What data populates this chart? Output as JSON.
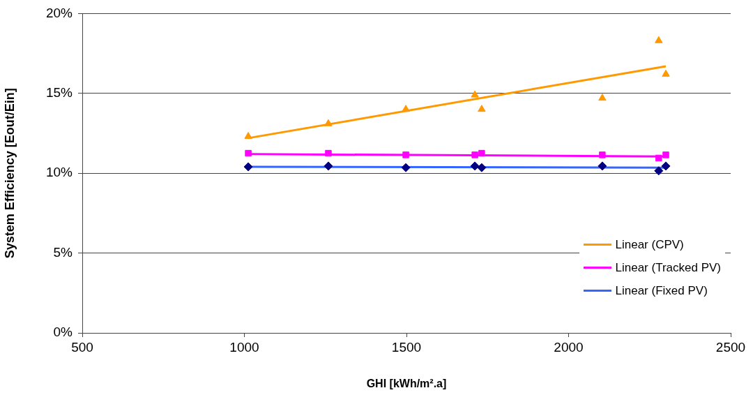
{
  "chart_data": {
    "type": "scatter",
    "xlabel": "GHI [kWh/m².a]",
    "ylabel": "System Efficiency [Eout/Ein]",
    "xlim": [
      500,
      2500
    ],
    "xticks": [
      500,
      1000,
      1500,
      2000,
      2500
    ],
    "ylim": [
      0,
      20
    ],
    "yticks": [
      {
        "value": 0,
        "label": "0%"
      },
      {
        "value": 5,
        "label": "5%"
      },
      {
        "value": 10,
        "label": "10%"
      },
      {
        "value": 15,
        "label": "15%"
      },
      {
        "value": 20,
        "label": "20%"
      }
    ],
    "grid": "y",
    "legend": "right",
    "series": [
      {
        "marker": "triangle",
        "color": "#ff9900",
        "x": [
          1012,
          1259,
          1498,
          1711,
          1732,
          2104,
          2278,
          2300
        ],
        "values": [
          12.3,
          13.1,
          14.0,
          14.9,
          14.0,
          14.7,
          18.3,
          16.2
        ]
      },
      {
        "marker": "square",
        "color": "#ff00ff",
        "x": [
          1012,
          1259,
          1498,
          1711,
          1732,
          2104,
          2278,
          2300
        ],
        "values": [
          11.25,
          11.25,
          11.15,
          11.15,
          11.25,
          11.15,
          10.95,
          11.15
        ]
      },
      {
        "marker": "diamond",
        "color": "#000080",
        "x": [
          1012,
          1259,
          1498,
          1711,
          1732,
          2104,
          2278,
          2300
        ],
        "values": [
          10.4,
          10.45,
          10.35,
          10.45,
          10.35,
          10.45,
          10.15,
          10.45
        ]
      },
      {
        "type": "line",
        "name": "Linear (CPV)",
        "color": "#ff9900",
        "x": [
          1012,
          2300
        ],
        "values": [
          12.2,
          16.7
        ]
      },
      {
        "type": "line",
        "name": "Linear (Tracked PV)",
        "color": "#ff00ff",
        "x": [
          1012,
          2300
        ],
        "values": [
          11.2,
          11.05
        ]
      },
      {
        "type": "line",
        "name": "Linear (Fixed PV)",
        "color": "#3366ff",
        "x": [
          1012,
          2300
        ],
        "values": [
          10.4,
          10.35
        ]
      }
    ]
  }
}
